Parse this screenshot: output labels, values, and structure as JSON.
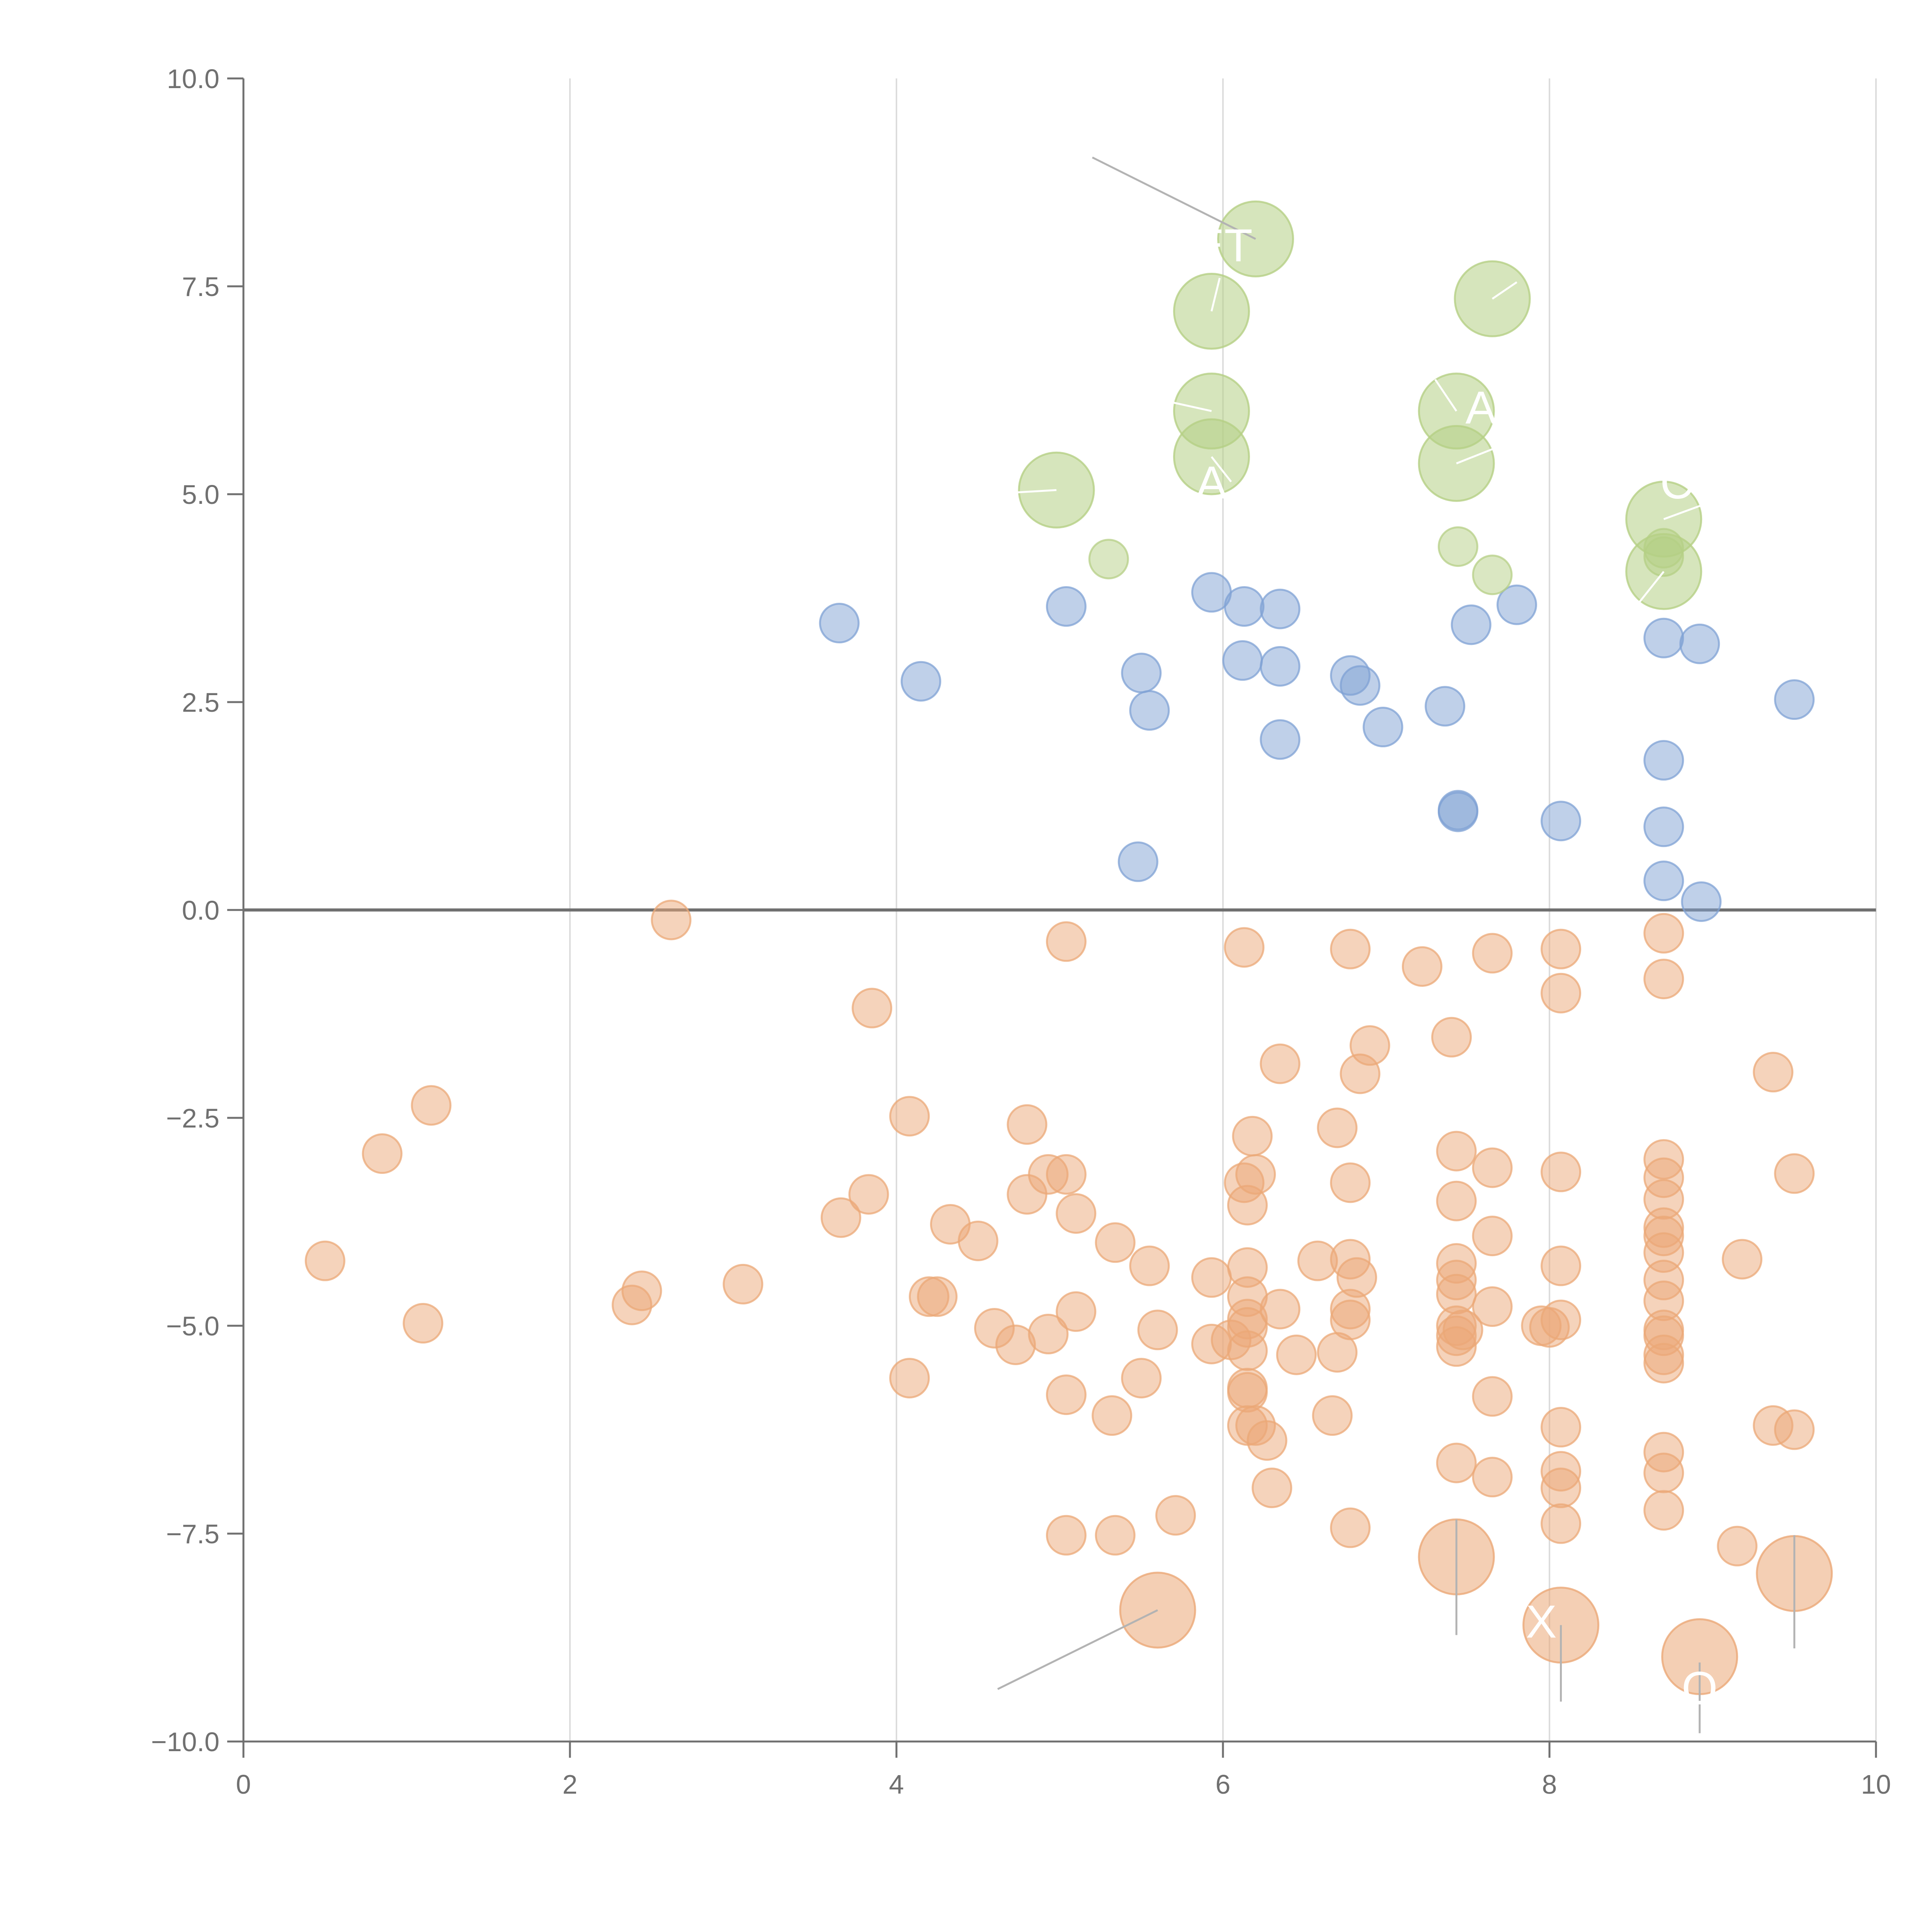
{
  "chart_data": {
    "type": "scatter",
    "title": "",
    "xlabel": "",
    "ylabel": "",
    "xlim": [
      0,
      10
    ],
    "ylim": [
      -10,
      10
    ],
    "x_ticks": [
      0,
      2,
      4,
      6,
      8,
      10
    ],
    "x_tick_labels": [
      "0",
      "2",
      "4",
      "6",
      "8",
      "10"
    ],
    "y_ticks": [
      10,
      7.5,
      5,
      2.5,
      0,
      -2.5,
      -5,
      -7.5,
      -10
    ],
    "y_tick_labels": [
      "10.0",
      "7.5",
      "5.0",
      "2.5",
      "0.0",
      "−2.5",
      "−5.0",
      "−7.5",
      "−10.0"
    ],
    "vertical_gridlines": true,
    "zero_line": true,
    "colors": {
      "positive": "#7fa2d4",
      "negative": "#eba877",
      "highlight": "#b5cf85",
      "axis": "#707070",
      "grid": "#dcdcdc"
    },
    "series": [
      {
        "name": "positive",
        "color_key": "positive",
        "points": [
          [
            3.65,
            3.45
          ],
          [
            4.15,
            2.75
          ],
          [
            5.04,
            3.65
          ],
          [
            5.5,
            2.85
          ],
          [
            5.55,
            2.4
          ],
          [
            5.48,
            0.58
          ],
          [
            5.93,
            3.82
          ],
          [
            6.13,
            3.65
          ],
          [
            6.35,
            3.62
          ],
          [
            6.12,
            3.0
          ],
          [
            6.35,
            2.93
          ],
          [
            6.35,
            2.05
          ],
          [
            6.78,
            2.82
          ],
          [
            6.84,
            2.7
          ],
          [
            6.98,
            2.2
          ],
          [
            7.36,
            2.45
          ],
          [
            7.44,
            1.2
          ],
          [
            7.44,
            1.18
          ],
          [
            7.52,
            3.43
          ],
          [
            7.8,
            3.67
          ],
          [
            8.07,
            1.07
          ],
          [
            8.7,
            3.27
          ],
          [
            8.7,
            1.8
          ],
          [
            8.7,
            1.0
          ],
          [
            8.7,
            0.35
          ],
          [
            8.92,
            3.2
          ],
          [
            8.93,
            0.1
          ],
          [
            9.5,
            2.53
          ]
        ]
      },
      {
        "name": "negative",
        "color_key": "negative",
        "points": [
          [
            0.5,
            -4.22
          ],
          [
            0.85,
            -2.93
          ],
          [
            1.1,
            -4.97
          ],
          [
            1.15,
            -2.35
          ],
          [
            2.38,
            -4.75
          ],
          [
            2.44,
            -4.58
          ],
          [
            2.62,
            -0.12
          ],
          [
            3.06,
            -4.5
          ],
          [
            3.66,
            -3.7
          ],
          [
            3.83,
            -3.42
          ],
          [
            3.85,
            -1.18
          ],
          [
            4.08,
            -2.48
          ],
          [
            4.08,
            -5.63
          ],
          [
            4.2,
            -4.65
          ],
          [
            4.25,
            -4.65
          ],
          [
            4.33,
            -3.78
          ],
          [
            4.5,
            -3.98
          ],
          [
            4.6,
            -5.03
          ],
          [
            4.73,
            -5.23
          ],
          [
            4.8,
            -2.58
          ],
          [
            4.8,
            -3.42
          ],
          [
            4.93,
            -3.18
          ],
          [
            4.93,
            -5.1
          ],
          [
            5.04,
            -0.38
          ],
          [
            5.04,
            -3.18
          ],
          [
            5.04,
            -5.83
          ],
          [
            5.04,
            -7.52
          ],
          [
            5.1,
            -3.65
          ],
          [
            5.1,
            -4.83
          ],
          [
            5.34,
            -4.0
          ],
          [
            5.34,
            -7.52
          ],
          [
            5.32,
            -6.08
          ],
          [
            5.5,
            -5.63
          ],
          [
            5.55,
            -4.28
          ],
          [
            5.6,
            -5.05
          ],
          [
            5.71,
            -7.28
          ],
          [
            5.93,
            -4.42
          ],
          [
            5.93,
            -5.22
          ],
          [
            6.05,
            -5.17
          ],
          [
            6.13,
            -0.45
          ],
          [
            6.15,
            -4.3
          ],
          [
            6.15,
            -4.65
          ],
          [
            6.15,
            -4.92
          ],
          [
            6.15,
            -5.02
          ],
          [
            6.15,
            -5.3
          ],
          [
            6.13,
            -3.28
          ],
          [
            6.15,
            -3.55
          ],
          [
            6.2,
            -3.18
          ],
          [
            6.18,
            -2.72
          ],
          [
            6.15,
            -5.75
          ],
          [
            6.15,
            -5.8
          ],
          [
            6.15,
            -6.2
          ],
          [
            6.2,
            -6.2
          ],
          [
            6.27,
            -6.38
          ],
          [
            6.3,
            -6.95
          ],
          [
            6.35,
            -1.85
          ],
          [
            6.35,
            -4.8
          ],
          [
            6.45,
            -5.35
          ],
          [
            6.58,
            -4.22
          ],
          [
            6.67,
            -6.08
          ],
          [
            6.7,
            -2.62
          ],
          [
            6.7,
            -5.32
          ],
          [
            6.78,
            -0.47
          ],
          [
            6.78,
            -3.28
          ],
          [
            6.78,
            -4.2
          ],
          [
            6.78,
            -4.8
          ],
          [
            6.78,
            -4.93
          ],
          [
            6.78,
            -7.43
          ],
          [
            6.82,
            -4.42
          ],
          [
            6.84,
            -1.97
          ],
          [
            6.9,
            -1.63
          ],
          [
            7.22,
            -0.68
          ],
          [
            7.4,
            -1.53
          ],
          [
            7.43,
            -2.9
          ],
          [
            7.43,
            -3.5
          ],
          [
            7.43,
            -4.25
          ],
          [
            7.43,
            -4.45
          ],
          [
            7.43,
            -4.62
          ],
          [
            7.43,
            -5.0
          ],
          [
            7.43,
            -5.12
          ],
          [
            7.43,
            -5.25
          ],
          [
            7.43,
            -6.65
          ],
          [
            7.47,
            -5.05
          ],
          [
            7.65,
            -0.52
          ],
          [
            7.65,
            -3.1
          ],
          [
            7.65,
            -3.92
          ],
          [
            7.65,
            -4.77
          ],
          [
            7.65,
            -5.85
          ],
          [
            7.65,
            -6.82
          ],
          [
            7.95,
            -5.0
          ],
          [
            8.0,
            -5.02
          ],
          [
            8.07,
            -0.47
          ],
          [
            8.07,
            -1.0
          ],
          [
            8.07,
            -3.15
          ],
          [
            8.07,
            -4.28
          ],
          [
            8.07,
            -4.93
          ],
          [
            8.07,
            -6.22
          ],
          [
            8.07,
            -6.75
          ],
          [
            8.07,
            -6.95
          ],
          [
            8.07,
            -7.38
          ],
          [
            8.7,
            -0.28
          ],
          [
            8.7,
            -0.83
          ],
          [
            8.7,
            -3.0
          ],
          [
            8.7,
            -3.22
          ],
          [
            8.7,
            -3.48
          ],
          [
            8.7,
            -3.82
          ],
          [
            8.7,
            -3.92
          ],
          [
            8.7,
            -4.12
          ],
          [
            8.7,
            -4.45
          ],
          [
            8.7,
            -4.7
          ],
          [
            8.7,
            -5.05
          ],
          [
            8.7,
            -5.12
          ],
          [
            8.7,
            -5.35
          ],
          [
            8.7,
            -5.45
          ],
          [
            8.7,
            -6.52
          ],
          [
            8.7,
            -6.77
          ],
          [
            8.7,
            -7.22
          ],
          [
            9.15,
            -7.65
          ],
          [
            9.18,
            -4.2
          ],
          [
            9.37,
            -1.95
          ],
          [
            9.37,
            -6.2
          ],
          [
            9.5,
            -3.17
          ],
          [
            9.5,
            -6.25
          ]
        ]
      },
      {
        "name": "highlight-small",
        "color_key": "highlight",
        "points": [
          [
            5.3,
            4.22
          ],
          [
            7.44,
            4.37
          ],
          [
            7.65,
            4.03
          ],
          [
            8.7,
            4.35
          ],
          [
            8.7,
            4.25
          ]
        ]
      }
    ],
    "large_points": [
      {
        "x": 6.2,
        "y": 8.07,
        "color_key": "highlight",
        "label": ""
      },
      {
        "x": 5.93,
        "y": 7.2,
        "color_key": "highlight",
        "label": ""
      },
      {
        "x": 7.65,
        "y": 7.35,
        "color_key": "highlight",
        "label": ""
      },
      {
        "x": 5.93,
        "y": 6.0,
        "color_key": "highlight",
        "label": ""
      },
      {
        "x": 5.93,
        "y": 5.45,
        "color_key": "highlight",
        "label": ""
      },
      {
        "x": 4.98,
        "y": 5.05,
        "color_key": "highlight",
        "label": ""
      },
      {
        "x": 7.43,
        "y": 6.0,
        "color_key": "highlight",
        "label": ""
      },
      {
        "x": 7.43,
        "y": 5.37,
        "color_key": "highlight",
        "label": ""
      },
      {
        "x": 8.7,
        "y": 4.7,
        "color_key": "highlight",
        "label": ""
      },
      {
        "x": 8.7,
        "y": 4.07,
        "color_key": "highlight",
        "label": ""
      },
      {
        "x": 5.6,
        "y": -8.42,
        "color_key": "negative",
        "label": ""
      },
      {
        "x": 7.43,
        "y": -7.78,
        "color_key": "negative",
        "label": ""
      },
      {
        "x": 8.07,
        "y": -8.6,
        "color_key": "negative",
        "label": "X"
      },
      {
        "x": 8.92,
        "y": -8.98,
        "color_key": "negative",
        "label": ""
      },
      {
        "x": 9.5,
        "y": -7.98,
        "color_key": "negative",
        "label": ""
      }
    ],
    "annotations": [
      {
        "text": "ET",
        "x": 6.0,
        "y": 7.8
      },
      {
        "text": "A",
        "x": 7.58,
        "y": 5.85
      },
      {
        "text": "A",
        "x": 5.93,
        "y": 4.95
      },
      {
        "text": "C",
        "x": 8.78,
        "y": 4.95
      },
      {
        "text": "X",
        "x": 7.95,
        "y": -8.75
      },
      {
        "text": "O",
        "x": 8.92,
        "y": -9.55
      }
    ],
    "leader_lines": [
      {
        "x1": 5.2,
        "y1": 9.05,
        "x2": 6.2,
        "y2": 8.07,
        "color": "#b3b3b3"
      },
      {
        "x1": 4.62,
        "y1": -9.37,
        "x2": 5.6,
        "y2": -8.42,
        "color": "#b3b3b3"
      },
      {
        "x1": 7.43,
        "y1": -7.33,
        "x2": 7.43,
        "y2": -8.72,
        "color": "#b3b3b3"
      },
      {
        "x1": 8.07,
        "y1": -8.6,
        "x2": 8.07,
        "y2": -9.52,
        "color": "#b3b3b3"
      },
      {
        "x1": 8.92,
        "y1": -9.05,
        "x2": 8.92,
        "y2": -9.9,
        "color": "#b3b3b3"
      },
      {
        "x1": 9.5,
        "y1": -7.52,
        "x2": 9.5,
        "y2": -8.88,
        "color": "#b3b3b3"
      },
      {
        "x1": 5.93,
        "y1": 7.2,
        "x2": 5.98,
        "y2": 7.6,
        "color": "#ffffff"
      },
      {
        "x1": 7.65,
        "y1": 7.35,
        "x2": 7.8,
        "y2": 7.55,
        "color": "#ffffff"
      },
      {
        "x1": 5.93,
        "y1": 6.0,
        "x2": 5.7,
        "y2": 6.1,
        "color": "#ffffff"
      },
      {
        "x1": 5.93,
        "y1": 5.45,
        "x2": 6.05,
        "y2": 5.15,
        "color": "#ffffff"
      },
      {
        "x1": 4.98,
        "y1": 5.05,
        "x2": 4.55,
        "y2": 5.0,
        "color": "#ffffff"
      },
      {
        "x1": 7.43,
        "y1": 6.0,
        "x2": 7.3,
        "y2": 6.38,
        "color": "#ffffff"
      },
      {
        "x1": 7.43,
        "y1": 5.37,
        "x2": 7.75,
        "y2": 5.62,
        "color": "#ffffff"
      },
      {
        "x1": 8.7,
        "y1": 4.7,
        "x2": 8.95,
        "y2": 4.88,
        "color": "#ffffff"
      },
      {
        "x1": 8.7,
        "y1": 4.07,
        "x2": 8.55,
        "y2": 3.7,
        "color": "#ffffff"
      }
    ]
  }
}
